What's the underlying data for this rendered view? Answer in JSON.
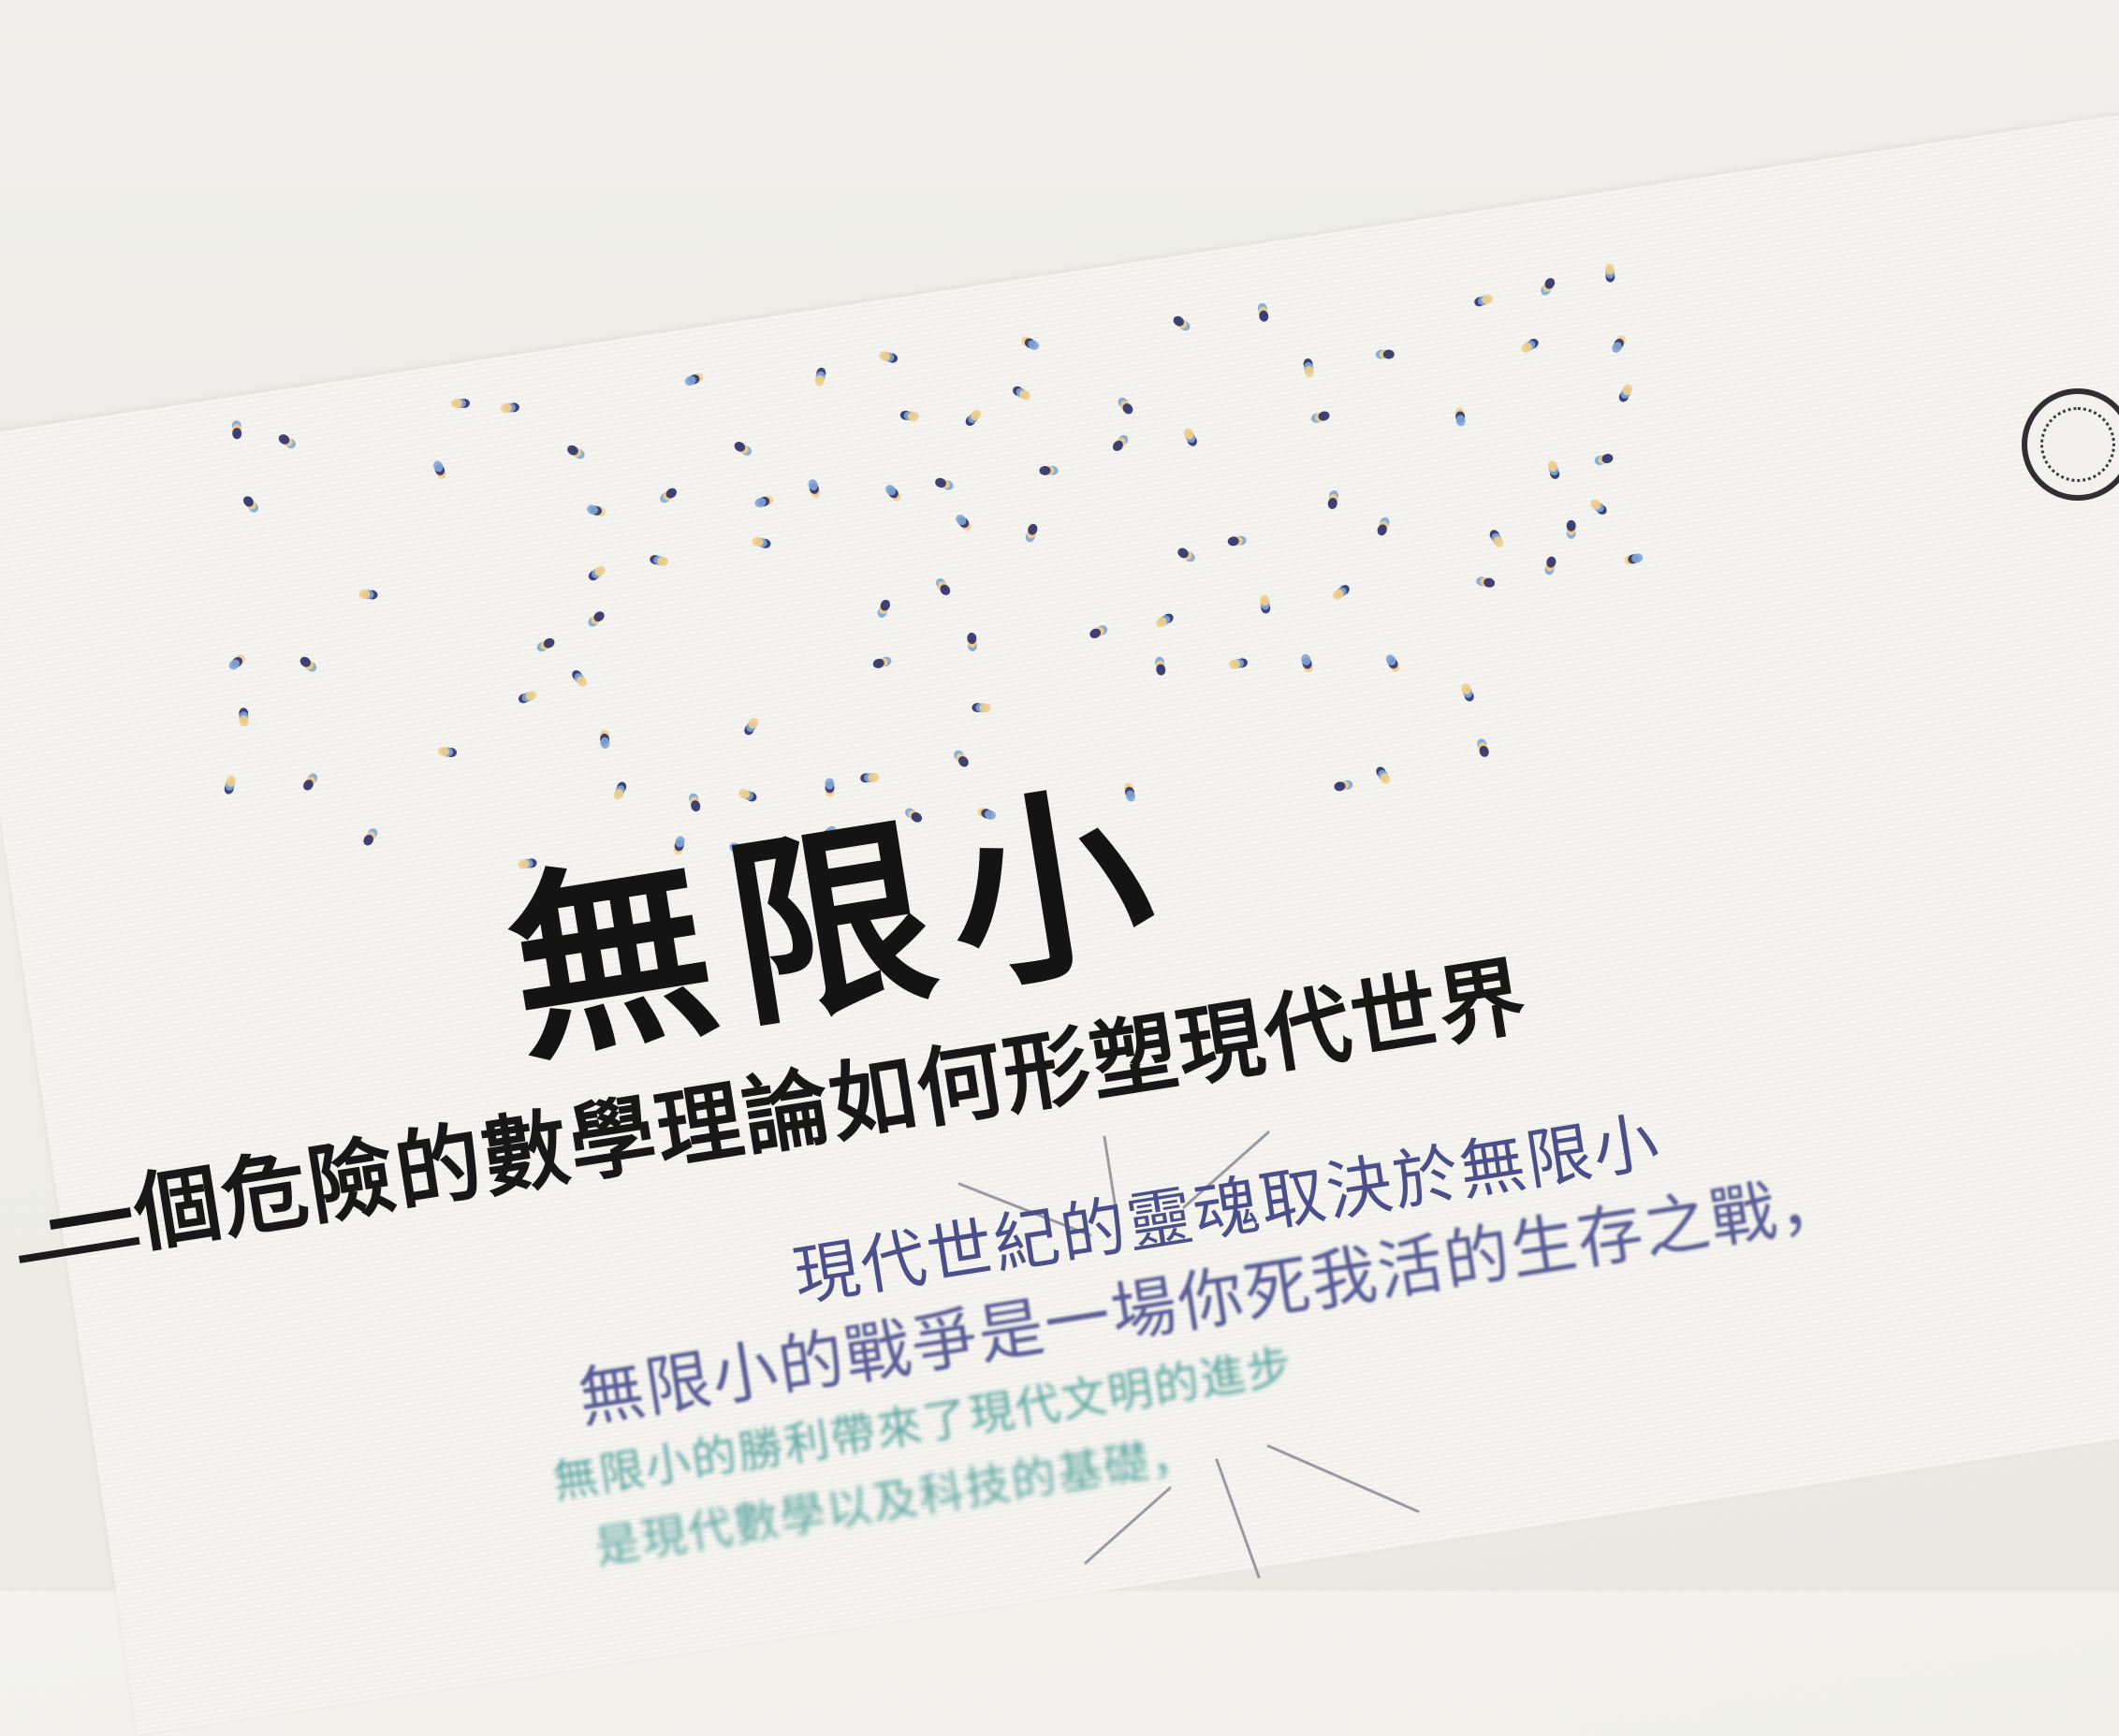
{
  "cover": {
    "title": "無限小",
    "subtitle": "一個危險的數學理論如何形塑現代世界",
    "tagline": "現代世紀的靈魂取決於無限小",
    "body_lines": [
      "無限小的戰爭是一場你死我活的生存之戰，",
      "無限小的勝利帶來了現代文明的進步",
      "是現代數學以及科技的基礎，"
    ]
  },
  "colors": {
    "title": "#141414",
    "tagline": "#4b4f8a",
    "body": "#5fa7a2",
    "dot_navy": "#2b2f6b",
    "dot_blue": "#7fa6d6",
    "dot_yellow": "#f0cf8a"
  }
}
